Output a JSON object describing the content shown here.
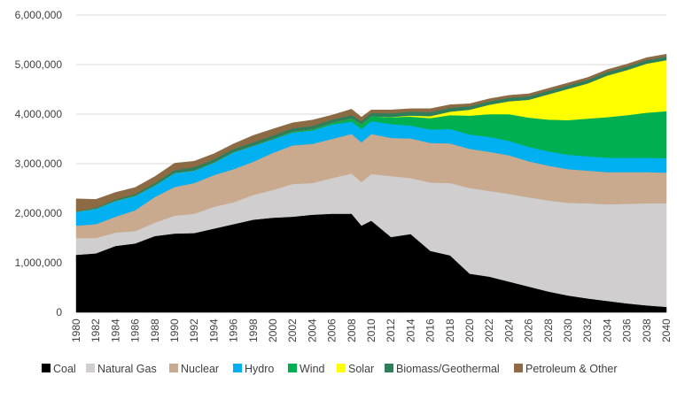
{
  "chart_data": {
    "type": "area",
    "stacked": true,
    "title": "",
    "xlabel": "",
    "ylabel": "",
    "ylim": [
      0,
      6000000
    ],
    "yticks": [
      0,
      1000000,
      2000000,
      3000000,
      4000000,
      5000000,
      6000000
    ],
    "ytick_labels": [
      "0",
      "1,000,000",
      "2,000,000",
      "3,000,000",
      "4,000,000",
      "5,000,000",
      "6,000,000"
    ],
    "x": [
      1980,
      1982,
      1984,
      1986,
      1988,
      1990,
      1992,
      1994,
      1996,
      1998,
      2000,
      2002,
      2004,
      2006,
      2008,
      2009,
      2010,
      2012,
      2014,
      2016,
      2018,
      2020,
      2022,
      2024,
      2026,
      2028,
      2030,
      2032,
      2034,
      2036,
      2038,
      2040
    ],
    "xtick_labels": [
      "1980",
      "1982",
      "1984",
      "1986",
      "1988",
      "1990",
      "1992",
      "1994",
      "1996",
      "1998",
      "2000",
      "2002",
      "2004",
      "2006",
      "2008",
      "2010",
      "2012",
      "2014",
      "2016",
      "2018",
      "2020",
      "2022",
      "2024",
      "2026",
      "2028",
      "2030",
      "2032",
      "2034",
      "2036",
      "2038",
      "2040"
    ],
    "grid": true,
    "legend_position": "bottom",
    "series": [
      {
        "name": "Coal",
        "color": "#000000",
        "values": [
          1160000,
          1190000,
          1340000,
          1390000,
          1540000,
          1590000,
          1600000,
          1690000,
          1780000,
          1870000,
          1910000,
          1930000,
          1970000,
          1990000,
          1990000,
          1750000,
          1850000,
          1520000,
          1580000,
          1240000,
          1150000,
          780000,
          720000,
          620000,
          520000,
          420000,
          340000,
          280000,
          230000,
          180000,
          140000,
          110000
        ]
      },
      {
        "name": "Natural Gas",
        "color": "#d0cece",
        "values": [
          340000,
          310000,
          270000,
          250000,
          270000,
          360000,
          390000,
          440000,
          440000,
          500000,
          560000,
          660000,
          640000,
          720000,
          810000,
          880000,
          940000,
          1230000,
          1130000,
          1380000,
          1460000,
          1730000,
          1730000,
          1770000,
          1800000,
          1840000,
          1870000,
          1920000,
          1950000,
          2010000,
          2060000,
          2090000
        ]
      },
      {
        "name": "Nuclear",
        "color": "#c9aa8e",
        "values": [
          250000,
          280000,
          320000,
          420000,
          520000,
          580000,
          620000,
          640000,
          670000,
          670000,
          750000,
          780000,
          790000,
          790000,
          800000,
          800000,
          810000,
          770000,
          800000,
          800000,
          800000,
          790000,
          790000,
          780000,
          730000,
          700000,
          680000,
          660000,
          650000,
          640000,
          630000,
          620000
        ]
      },
      {
        "name": "Hydro",
        "color": "#00b0f0",
        "values": [
          280000,
          310000,
          320000,
          290000,
          230000,
          280000,
          250000,
          250000,
          340000,
          320000,
          270000,
          260000,
          270000,
          290000,
          250000,
          270000,
          260000,
          280000,
          260000,
          270000,
          290000,
          290000,
          300000,
          290000,
          290000,
          290000,
          290000,
          290000,
          290000,
          290000,
          290000,
          290000
        ]
      },
      {
        "name": "Wind",
        "color": "#00b050",
        "values": [
          0,
          0,
          0,
          0,
          0,
          0,
          0,
          0,
          0,
          0,
          10000,
          15000,
          20000,
          30000,
          60000,
          90000,
          95000,
          140000,
          180000,
          230000,
          280000,
          380000,
          460000,
          540000,
          590000,
          640000,
          700000,
          760000,
          820000,
          860000,
          910000,
          950000
        ]
      },
      {
        "name": "Solar",
        "color": "#ffff00",
        "values": [
          0,
          0,
          0,
          0,
          0,
          0,
          0,
          0,
          0,
          0,
          0,
          0,
          0,
          0,
          0,
          0,
          0,
          5000,
          20000,
          40000,
          70000,
          120000,
          190000,
          260000,
          360000,
          510000,
          630000,
          710000,
          840000,
          910000,
          990000,
          1030000
        ]
      },
      {
        "name": "Biomass/Geothermal",
        "color": "#2e7d5b",
        "values": [
          10000,
          20000,
          30000,
          40000,
          50000,
          60000,
          70000,
          70000,
          70000,
          70000,
          70000,
          70000,
          70000,
          70000,
          70000,
          70000,
          70000,
          70000,
          80000,
          80000,
          80000,
          70000,
          70000,
          70000,
          70000,
          70000,
          70000,
          70000,
          70000,
          70000,
          70000,
          70000
        ]
      },
      {
        "name": "Petroleum & Other",
        "color": "#8c6a44",
        "values": [
          250000,
          170000,
          140000,
          130000,
          130000,
          140000,
          120000,
          110000,
          100000,
          140000,
          130000,
          110000,
          120000,
          90000,
          120000,
          80000,
          60000,
          70000,
          60000,
          70000,
          60000,
          50000,
          50000,
          50000,
          50000,
          50000,
          50000,
          50000,
          50000,
          50000,
          50000,
          50000
        ]
      }
    ]
  }
}
